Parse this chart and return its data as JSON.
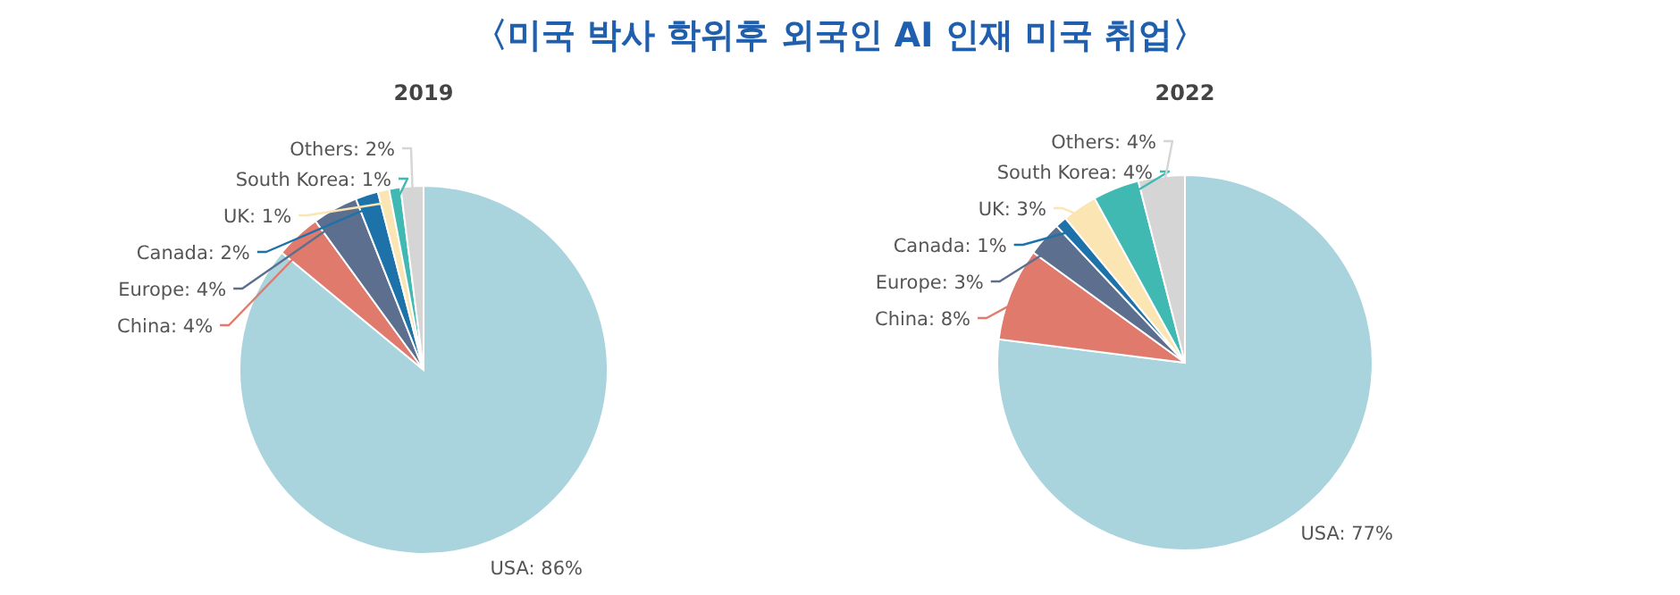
{
  "chart_data": [
    {
      "type": "pie",
      "title": "〈미국 박사 학위후 외국인 AI 인재 미국 취업〉",
      "subtitle": "2019",
      "categories": [
        "USA",
        "China",
        "Europe",
        "Canada",
        "UK",
        "South Korea",
        "Others"
      ],
      "values": [
        86,
        4,
        4,
        2,
        1,
        1,
        2
      ],
      "value_labels": [
        "86%",
        "4%",
        "4%",
        "2%",
        "1%",
        "1%",
        "2%"
      ],
      "colors": [
        "#aad4dd",
        "#e07a6d",
        "#5c6f8e",
        "#1d72aa",
        "#fbe5b2",
        "#40b9b2",
        "#d5d5d5"
      ]
    },
    {
      "type": "pie",
      "subtitle": "2022",
      "categories": [
        "USA",
        "China",
        "Europe",
        "Canada",
        "UK",
        "South Korea",
        "Others"
      ],
      "values": [
        77,
        8,
        3,
        1,
        3,
        4,
        4
      ],
      "value_labels": [
        "77%",
        "8%",
        "3%",
        "1%",
        "3%",
        "4%",
        "4%"
      ],
      "colors": [
        "#aad4dd",
        "#e07a6d",
        "#5c6f8e",
        "#1d72aa",
        "#fbe5b2",
        "#40b9b2",
        "#d5d5d5"
      ]
    }
  ]
}
